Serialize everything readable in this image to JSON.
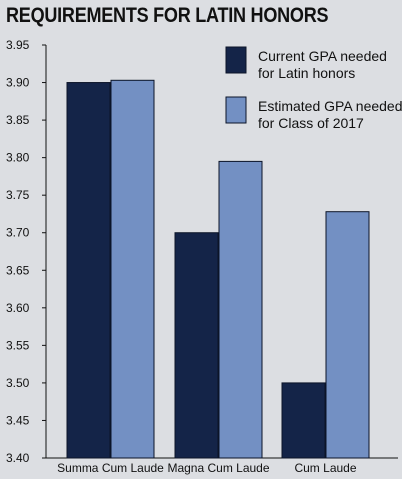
{
  "chart_data": {
    "type": "bar",
    "title": "REQUIREMENTS FOR LATIN HONORS",
    "categories": [
      "Summa Cum Laude",
      "Magna Cum Laude",
      "Cum Laude"
    ],
    "series": [
      {
        "name": "Current GPA needed for Latin honors",
        "legend_lines": [
          "Current GPA needed",
          "for Latin honors"
        ],
        "color": "#142448",
        "values": [
          3.9,
          3.7,
          3.5
        ]
      },
      {
        "name": "Estimated GPA needed for Class of 2017",
        "legend_lines": [
          "Estimated GPA needed",
          "for Class of 2017"
        ],
        "color": "#7390c3",
        "values": [
          3.903,
          3.795,
          3.728
        ]
      }
    ],
    "ylim": [
      3.4,
      3.95
    ],
    "yticks": [
      "3.40",
      "3.45",
      "3.50",
      "3.55",
      "3.60",
      "3.65",
      "3.70",
      "3.75",
      "3.80",
      "3.85",
      "3.90",
      "3.95"
    ],
    "grid": false,
    "legend_position": "top-right",
    "xlabel": "",
    "ylabel": ""
  }
}
